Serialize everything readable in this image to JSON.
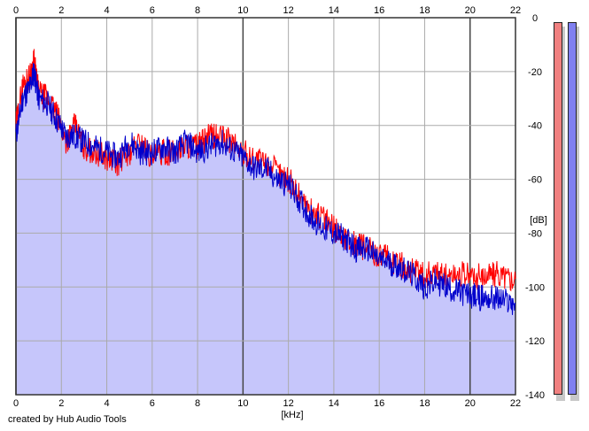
{
  "chart_data": {
    "type": "area",
    "xlabel": "[kHz]",
    "ylabel": "[dB]",
    "xlim": [
      0,
      22
    ],
    "ylim": [
      -140,
      0
    ],
    "x_ticks": [
      "0",
      "2",
      "4",
      "6",
      "8",
      "10",
      "12",
      "14",
      "16",
      "18",
      "20",
      "22"
    ],
    "y_ticks": [
      "0",
      "-20",
      "-40",
      "-60",
      "-80",
      "-100",
      "-120",
      "-140"
    ],
    "grid": true,
    "fill_color": "#c6c6fb",
    "series": [
      {
        "color": "#ff0000",
        "points": [
          [
            0,
            -40
          ],
          [
            0.3,
            -25
          ],
          [
            0.6,
            -22
          ],
          [
            0.8,
            -16
          ],
          [
            1.0,
            -28
          ],
          [
            1.4,
            -30
          ],
          [
            1.8,
            -36
          ],
          [
            2.2,
            -46
          ],
          [
            2.6,
            -40
          ],
          [
            3.0,
            -48
          ],
          [
            3.5,
            -50
          ],
          [
            4.0,
            -52
          ],
          [
            4.5,
            -54
          ],
          [
            5.0,
            -50
          ],
          [
            5.5,
            -46
          ],
          [
            6.0,
            -52
          ],
          [
            6.5,
            -50
          ],
          [
            7.0,
            -50
          ],
          [
            7.5,
            -47
          ],
          [
            8.0,
            -48
          ],
          [
            8.5,
            -44
          ],
          [
            9.0,
            -44
          ],
          [
            9.5,
            -46
          ],
          [
            10.0,
            -50
          ],
          [
            10.5,
            -52
          ],
          [
            11.0,
            -54
          ],
          [
            11.5,
            -57
          ],
          [
            12.0,
            -60
          ],
          [
            12.5,
            -66
          ],
          [
            13.0,
            -72
          ],
          [
            13.5,
            -74
          ],
          [
            14.0,
            -78
          ],
          [
            14.5,
            -82
          ],
          [
            15.0,
            -84
          ],
          [
            15.5,
            -86
          ],
          [
            16.0,
            -88
          ],
          [
            16.5,
            -90
          ],
          [
            17.0,
            -92
          ],
          [
            17.5,
            -94
          ],
          [
            18.0,
            -96
          ],
          [
            18.5,
            -94
          ],
          [
            19.0,
            -96
          ],
          [
            19.5,
            -95
          ],
          [
            20.0,
            -96
          ],
          [
            20.5,
            -96
          ],
          [
            21.0,
            -95
          ],
          [
            21.5,
            -96
          ],
          [
            22.0,
            -97
          ]
        ]
      },
      {
        "color": "#0000cc",
        "points": [
          [
            0,
            -44
          ],
          [
            0.3,
            -30
          ],
          [
            0.6,
            -26
          ],
          [
            0.8,
            -20
          ],
          [
            1.0,
            -30
          ],
          [
            1.4,
            -32
          ],
          [
            1.8,
            -38
          ],
          [
            2.2,
            -44
          ],
          [
            2.6,
            -44
          ],
          [
            3.0,
            -46
          ],
          [
            3.5,
            -48
          ],
          [
            4.0,
            -50
          ],
          [
            4.5,
            -52
          ],
          [
            5.0,
            -46
          ],
          [
            5.5,
            -50
          ],
          [
            6.0,
            -50
          ],
          [
            6.5,
            -48
          ],
          [
            7.0,
            -50
          ],
          [
            7.5,
            -46
          ],
          [
            8.0,
            -50
          ],
          [
            8.5,
            -48
          ],
          [
            9.0,
            -46
          ],
          [
            9.5,
            -49
          ],
          [
            10.0,
            -52
          ],
          [
            10.5,
            -56
          ],
          [
            11.0,
            -56
          ],
          [
            11.5,
            -60
          ],
          [
            12.0,
            -62
          ],
          [
            12.5,
            -68
          ],
          [
            13.0,
            -74
          ],
          [
            13.5,
            -78
          ],
          [
            14.0,
            -80
          ],
          [
            14.5,
            -82
          ],
          [
            15.0,
            -86
          ],
          [
            15.5,
            -86
          ],
          [
            16.0,
            -90
          ],
          [
            16.5,
            -91
          ],
          [
            17.0,
            -93
          ],
          [
            17.5,
            -96
          ],
          [
            18.0,
            -100
          ],
          [
            18.5,
            -98
          ],
          [
            19.0,
            -100
          ],
          [
            19.5,
            -102
          ],
          [
            20.0,
            -103
          ],
          [
            20.5,
            -104
          ],
          [
            21.0,
            -104
          ],
          [
            21.5,
            -105
          ],
          [
            22.0,
            -106
          ]
        ]
      }
    ]
  },
  "credit": "created by Hub Audio Tools",
  "meters": [
    {
      "color": "#f08080"
    },
    {
      "color": "#8080f0"
    }
  ]
}
